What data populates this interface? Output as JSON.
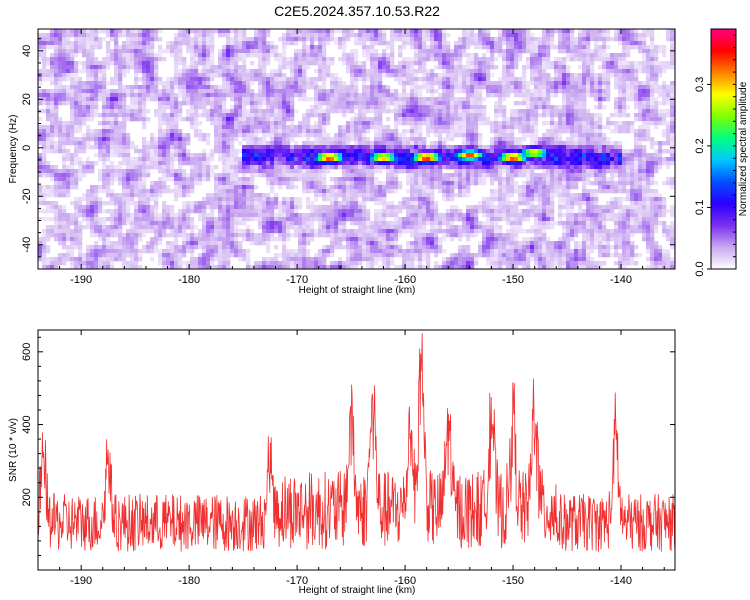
{
  "figure": {
    "title": "C2E5.2024.357.10.53.R22"
  },
  "chart_data": [
    {
      "type": "heatmap",
      "xlabel": "Height of straight line (km)",
      "ylabel": "Frequency (Hz)",
      "xlim": [
        -194,
        -135
      ],
      "ylim": [
        -50,
        49
      ],
      "xticks": [
        -190,
        -180,
        -170,
        -160,
        -150,
        -140
      ],
      "yticks": [
        -40,
        -20,
        0,
        20,
        40
      ],
      "colorbar": {
        "label": "Normalized spectral amplitude",
        "range": [
          0.0,
          0.39
        ],
        "ticks": [
          0.0,
          0.1,
          0.2,
          0.3
        ],
        "colors": [
          "#ffffff",
          "#c9a8f0",
          "#7b2ff0",
          "#2a00ff",
          "#0050ff",
          "#00c8ff",
          "#00ff80",
          "#80ff00",
          "#ffff00",
          "#ff8000",
          "#ff0000",
          "#ff0080"
        ]
      },
      "band": {
        "center_hz": -4,
        "half_width_hz": 6,
        "start_km": -175,
        "end_km": -140,
        "peaks": [
          {
            "x": -167,
            "y": -4,
            "value": 0.36
          },
          {
            "x": -162,
            "y": -4,
            "value": 0.32
          },
          {
            "x": -158,
            "y": -4,
            "value": 0.37
          },
          {
            "x": -154,
            "y": -3,
            "value": 0.34
          },
          {
            "x": -150,
            "y": -4,
            "value": 0.36
          },
          {
            "x": -148,
            "y": -2,
            "value": 0.3
          }
        ]
      },
      "grid": false
    },
    {
      "type": "line",
      "xlabel": "Height of straight line (km)",
      "ylabel": "SNR (10 * v/v)",
      "xlim": [
        -194,
        -135
      ],
      "ylim": [
        0,
        660
      ],
      "xticks": [
        -190,
        -180,
        -170,
        -160,
        -150,
        -140
      ],
      "yticks": [
        200,
        400,
        600
      ],
      "series": [
        {
          "color": "#f03030",
          "baseline": 130,
          "noise": 80,
          "peaks": [
            {
              "x": -193.5,
              "y": 340
            },
            {
              "x": -187.5,
              "y": 360
            },
            {
              "x": -172.5,
              "y": 365
            },
            {
              "x": -165,
              "y": 455
            },
            {
              "x": -163,
              "y": 525
            },
            {
              "x": -159.5,
              "y": 440
            },
            {
              "x": -158.5,
              "y": 650
            },
            {
              "x": -156,
              "y": 430
            },
            {
              "x": -152,
              "y": 470
            },
            {
              "x": -150,
              "y": 430
            },
            {
              "x": -148,
              "y": 490
            },
            {
              "x": -140.5,
              "y": 430
            }
          ]
        }
      ],
      "grid": false
    }
  ]
}
